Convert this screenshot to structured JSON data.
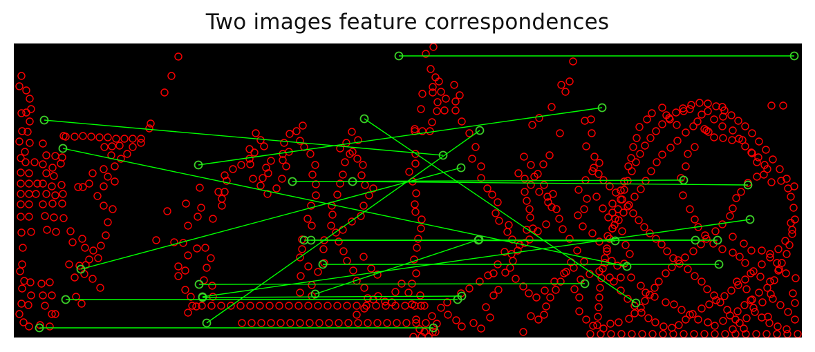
{
  "title": "Two images feature correspondences",
  "colors": {
    "background": "#000000",
    "keypoint": "#ff0000",
    "match_line": "#00ff00",
    "match_marker": "#3cd028"
  },
  "keypoint_marker": "circle",
  "match_count": 19
}
